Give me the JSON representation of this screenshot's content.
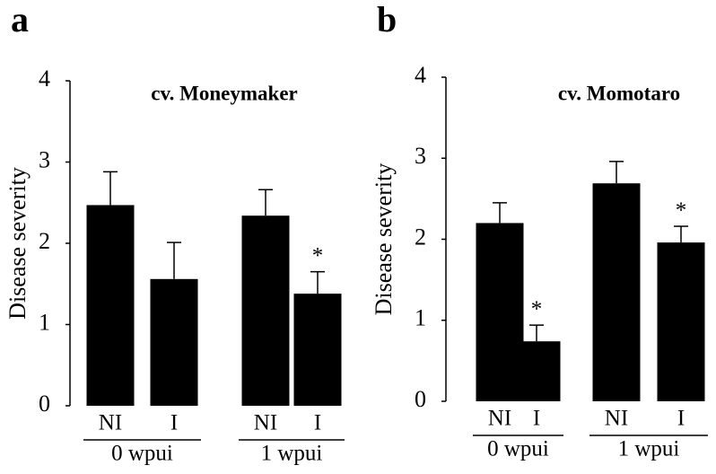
{
  "chart_data": [
    {
      "type": "bar",
      "panel_label": "a",
      "title": "cv. Moneymaker",
      "ylabel": "Disease severity",
      "categories": [
        "NI",
        "I",
        "NI",
        "I"
      ],
      "groups": [
        "0 wpui",
        "1 wpui"
      ],
      "values": [
        2.47,
        1.56,
        2.34,
        1.38
      ],
      "errors": [
        0.41,
        0.45,
        0.32,
        0.27
      ],
      "asterisks": [
        null,
        null,
        null,
        "*"
      ],
      "color": "#000000",
      "ylim": [
        0,
        4
      ],
      "yticks": [
        0,
        1,
        2,
        3,
        4
      ]
    },
    {
      "type": "bar",
      "panel_label": "b",
      "title": "cv. Momotaro",
      "ylabel": "Disease severity",
      "categories": [
        "NI",
        "I",
        "NI",
        "I"
      ],
      "groups": [
        "0 wpui",
        "1 wpui"
      ],
      "values": [
        2.2,
        0.74,
        2.69,
        1.96
      ],
      "errors": [
        0.25,
        0.2,
        0.27,
        0.2
      ],
      "asterisks": [
        null,
        "*",
        null,
        "*"
      ],
      "color": "#000000",
      "ylim": [
        0,
        4
      ],
      "yticks": [
        0,
        1,
        2,
        3,
        4
      ]
    }
  ]
}
